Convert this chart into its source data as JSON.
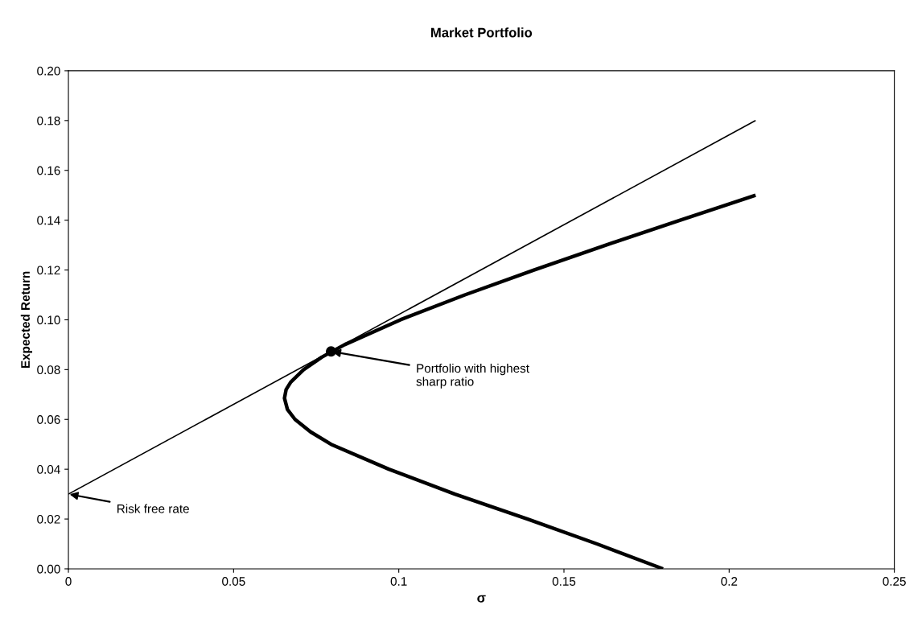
{
  "chart_data": {
    "type": "line",
    "title": "Market Portfolio",
    "xlabel": "σ",
    "ylabel": "Expected Return",
    "xlim": [
      0,
      0.25
    ],
    "xticks": [
      0,
      0.05,
      0.1,
      0.15,
      0.2,
      0.25
    ],
    "ylim": [
      0,
      0.2
    ],
    "yticks": [
      {
        "value": 0,
        "label": "0.00"
      },
      {
        "value": 0.02,
        "label": "0.02"
      },
      {
        "value": 0.04,
        "label": "0.04"
      },
      {
        "value": 0.06,
        "label": "0.06"
      },
      {
        "value": 0.08,
        "label": "0.08"
      },
      {
        "value": 0.1,
        "label": "0.10"
      },
      {
        "value": 0.12,
        "label": "0.12"
      },
      {
        "value": 0.14,
        "label": "0.14"
      },
      {
        "value": 0.16,
        "label": "0.16"
      },
      {
        "value": 0.18,
        "label": "0.18"
      },
      {
        "value": 0.2,
        "label": "0.20"
      }
    ],
    "grid": false,
    "legend": false,
    "marker": "none",
    "line_style": "solid",
    "series": [
      {
        "color": "#000000",
        "x": [
          0.18,
          0.16,
          0.139,
          0.117,
          0.097,
          0.0795,
          0.0733,
          0.0686,
          0.0663,
          0.0654,
          0.0659,
          0.0673,
          0.0712,
          0.0767,
          0.0836,
          0.1005,
          0.12,
          0.1409,
          0.1627,
          0.1852,
          0.208
        ],
        "values": [
          0,
          0.01,
          0.02,
          0.03,
          0.04,
          0.05,
          0.055,
          0.06,
          0.064,
          0.0685,
          0.072,
          0.075,
          0.08,
          0.085,
          0.09,
          0.1,
          0.11,
          0.12,
          0.13,
          0.14,
          0.15
        ]
      },
      {
        "color": "#000000",
        "x": [
          0,
          0.208
        ],
        "values": [
          0.03,
          0.18
        ]
      },
      {
        "type": "scatter",
        "color": "#000000",
        "marker": "circle",
        "x": [
          0.0795
        ],
        "values": [
          0.0873
        ]
      }
    ],
    "annotations": [
      {
        "text": "Risk free rate",
        "x": 0,
        "y": 0.03
      },
      {
        "text": "Portfolio with highest\nsharp ratio",
        "x": 0.0795,
        "y": 0.0873
      }
    ]
  }
}
